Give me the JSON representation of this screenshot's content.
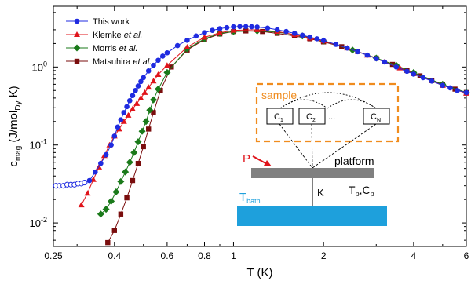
{
  "chart_data": {
    "type": "scatter",
    "title": "",
    "xlabel": "T (K)",
    "ylabel_main": "c",
    "ylabel_sub": "mag",
    "ylabel_mid": " (J/mol",
    "ylabel_sub2": "Dy",
    "ylabel_end": " K)",
    "x_scale": "log",
    "y_scale": "log",
    "xlim": [
      0.25,
      6
    ],
    "ylim": [
      0.005,
      6
    ],
    "grid": false,
    "legend_position": "top-left",
    "x_ticks": [
      {
        "value": 0.25,
        "label": "0.25"
      },
      {
        "value": 0.4,
        "label": "0.4"
      },
      {
        "value": 0.6,
        "label": "0.6"
      },
      {
        "value": 0.8,
        "label": "0.8"
      },
      {
        "value": 1,
        "label": "1"
      },
      {
        "value": 2,
        "label": "2"
      },
      {
        "value": 4,
        "label": "4"
      },
      {
        "value": 6,
        "label": "6"
      }
    ],
    "y_ticks": [
      {
        "value": 0.01,
        "base": "10",
        "exp": "-2"
      },
      {
        "value": 0.1,
        "base": "10",
        "exp": "-1"
      },
      {
        "value": 1,
        "base": "10",
        "exp": "0"
      }
    ],
    "series": [
      {
        "name": "This work",
        "color": "#1f2be0",
        "marker": "circle",
        "x": [
          0.33,
          0.345,
          0.36,
          0.375,
          0.39,
          0.4,
          0.41,
          0.42,
          0.43,
          0.44,
          0.45,
          0.46,
          0.47,
          0.48,
          0.49,
          0.5,
          0.52,
          0.54,
          0.56,
          0.58,
          0.6,
          0.65,
          0.7,
          0.75,
          0.8,
          0.85,
          0.9,
          0.95,
          1.0,
          1.05,
          1.1,
          1.15,
          1.2,
          1.3,
          1.4,
          1.5,
          1.6,
          1.7,
          1.8,
          1.9,
          2.0,
          2.2,
          2.4,
          2.6,
          2.8,
          3.0,
          3.2,
          3.5,
          3.8,
          4.0,
          4.3,
          4.6,
          5.0,
          5.3,
          5.6,
          6.0
        ],
        "y": [
          0.035,
          0.045,
          0.058,
          0.075,
          0.1,
          0.13,
          0.17,
          0.21,
          0.26,
          0.31,
          0.37,
          0.43,
          0.5,
          0.57,
          0.65,
          0.73,
          0.89,
          1.05,
          1.22,
          1.38,
          1.52,
          1.88,
          2.2,
          2.5,
          2.75,
          2.95,
          3.1,
          3.2,
          3.27,
          3.3,
          3.3,
          3.28,
          3.25,
          3.15,
          3.0,
          2.85,
          2.7,
          2.55,
          2.42,
          2.3,
          2.18,
          1.95,
          1.75,
          1.57,
          1.42,
          1.28,
          1.16,
          1.0,
          0.88,
          0.81,
          0.73,
          0.66,
          0.58,
          0.54,
          0.5,
          0.47
        ]
      },
      {
        "name": "This work (open)",
        "color": "#1f2be0",
        "marker": "open-circle",
        "x": [
          0.255,
          0.262,
          0.27,
          0.278,
          0.286,
          0.294,
          0.302,
          0.31,
          0.318
        ],
        "y": [
          0.03,
          0.03,
          0.03,
          0.031,
          0.031,
          0.031,
          0.032,
          0.032,
          0.033
        ]
      },
      {
        "name": "Klemke et al.",
        "color": "#e0141b",
        "marker": "triangle",
        "x": [
          0.31,
          0.325,
          0.34,
          0.355,
          0.37,
          0.385,
          0.4,
          0.415,
          0.43,
          0.445,
          0.46,
          0.475,
          0.49,
          0.505,
          0.52,
          0.54,
          0.56,
          0.6,
          0.7,
          0.8,
          0.9,
          1.0,
          1.2,
          1.4,
          1.6,
          1.8,
          2.0,
          2.4,
          2.8,
          3.2,
          3.6,
          4.0,
          5.0,
          6.0
        ],
        "y": [
          0.017,
          0.024,
          0.036,
          0.052,
          0.073,
          0.1,
          0.13,
          0.16,
          0.2,
          0.24,
          0.29,
          0.34,
          0.4,
          0.47,
          0.55,
          0.66,
          0.8,
          1.05,
          1.8,
          2.4,
          2.75,
          2.95,
          3.0,
          2.85,
          2.6,
          2.35,
          2.15,
          1.75,
          1.42,
          1.16,
          0.97,
          0.82,
          0.58,
          0.46
        ]
      },
      {
        "name": "Morris et al.",
        "color": "#1a7a1a",
        "marker": "diamond",
        "x": [
          0.36,
          0.375,
          0.39,
          0.405,
          0.42,
          0.435,
          0.45,
          0.465,
          0.48,
          0.495,
          0.51,
          0.525,
          0.54,
          0.56,
          0.6,
          0.7,
          0.8,
          0.9,
          1.0,
          1.2,
          1.4,
          1.7,
          2.0,
          2.5,
          3.0,
          3.5,
          4.0,
          5.0,
          6.0
        ],
        "y": [
          0.013,
          0.015,
          0.019,
          0.025,
          0.034,
          0.045,
          0.06,
          0.08,
          0.11,
          0.15,
          0.2,
          0.28,
          0.38,
          0.52,
          0.85,
          1.7,
          2.3,
          2.7,
          2.85,
          2.9,
          2.8,
          2.5,
          2.15,
          1.65,
          1.3,
          1.05,
          0.85,
          0.6,
          0.47
        ]
      },
      {
        "name": "Matsuhira et al.",
        "color": "#7a0d0d",
        "marker": "square",
        "x": [
          0.38,
          0.4,
          0.42,
          0.44,
          0.46,
          0.48,
          0.5,
          0.52,
          0.54,
          0.57,
          0.62,
          0.7,
          0.8,
          0.9,
          1.0,
          1.1,
          1.25,
          1.4,
          1.6,
          1.8,
          2.0,
          2.3,
          2.6,
          3.0,
          3.4,
          3.8,
          4.2,
          4.6,
          5.0,
          5.5,
          6.0
        ],
        "y": [
          0.0056,
          0.008,
          0.013,
          0.021,
          0.035,
          0.058,
          0.095,
          0.16,
          0.26,
          0.5,
          1.0,
          1.65,
          2.25,
          2.65,
          2.85,
          2.9,
          2.85,
          2.7,
          2.5,
          2.3,
          2.1,
          1.82,
          1.58,
          1.3,
          1.08,
          0.9,
          0.77,
          0.67,
          0.59,
          0.52,
          0.47
        ]
      }
    ],
    "legend": [
      {
        "label_main": "This work",
        "label_italic": "",
        "label_end": ""
      },
      {
        "label_main": "Klemke ",
        "label_italic": "et al.",
        "label_end": ""
      },
      {
        "label_main": "Morris ",
        "label_italic": "et al.",
        "label_end": ""
      },
      {
        "label_main": "Matsuhira ",
        "label_italic": "et al.",
        "label_end": ""
      }
    ],
    "inset": {
      "sample_label": "sample",
      "sample_color": "#f08c1e",
      "cells": [
        {
          "main": "C",
          "sub": "1"
        },
        {
          "main": "C",
          "sub": "2"
        },
        {
          "main": "C",
          "sub": "N"
        }
      ],
      "ellipsis": "...",
      "platform_label": "platform",
      "platform_color": "#808080",
      "power_label": "P",
      "power_color": "#e0141b",
      "k_label": "K",
      "tp_main": "T",
      "tp_sub": "p",
      "cp_sep": ",C",
      "cp_sub": "p",
      "bath_main": "T",
      "bath_sub": "bath",
      "bath_color": "#1ea0dc"
    }
  }
}
